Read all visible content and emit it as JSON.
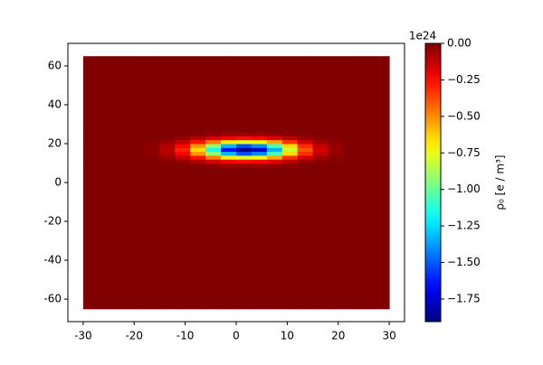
{
  "chart_data": {
    "type": "heatmap",
    "cmap": "jet",
    "x_edges": [
      -30,
      -18,
      -15,
      -12,
      -9,
      -6,
      -3,
      0,
      3,
      6,
      9,
      12,
      15,
      18,
      21,
      30
    ],
    "y_edges": [
      -65,
      8,
      10,
      12,
      14,
      16,
      18,
      20,
      22,
      24,
      26,
      65
    ],
    "values": [
      [
        0,
        0,
        0,
        0,
        0,
        0,
        0,
        0,
        0,
        0,
        0,
        0,
        0,
        0,
        0
      ],
      [
        0,
        0,
        0,
        -0.01,
        -0.02,
        -0.03,
        -0.05,
        -0.05,
        -0.05,
        -0.04,
        -0.02,
        -0.01,
        0,
        0,
        0
      ],
      [
        0,
        0,
        -0.01,
        -0.04,
        -0.09,
        -0.16,
        -0.22,
        -0.26,
        -0.24,
        -0.18,
        -0.11,
        -0.05,
        -0.02,
        -0.01,
        0
      ],
      [
        0,
        -0.01,
        -0.05,
        -0.12,
        -0.27,
        -0.47,
        -0.68,
        -0.78,
        -0.73,
        -0.55,
        -0.33,
        -0.16,
        -0.06,
        -0.02,
        0
      ],
      [
        0,
        -0.03,
        -0.09,
        -0.24,
        -0.52,
        -0.92,
        -1.32,
        -1.52,
        -1.41,
        -1.06,
        -0.65,
        -0.32,
        -0.13,
        -0.04,
        0
      ],
      [
        0,
        -0.03,
        -0.11,
        -0.3,
        -0.65,
        -1.15,
        -1.64,
        -1.89,
        -1.77,
        -1.33,
        -0.81,
        -0.4,
        -0.16,
        -0.05,
        0
      ],
      [
        0,
        -0.03,
        -0.09,
        -0.24,
        -0.52,
        -0.92,
        -1.32,
        -1.52,
        -1.41,
        -1.06,
        -0.65,
        -0.32,
        -0.13,
        -0.04,
        0
      ],
      [
        0,
        -0.01,
        -0.05,
        -0.12,
        -0.27,
        -0.47,
        -0.68,
        -0.78,
        -0.73,
        -0.55,
        -0.33,
        -0.16,
        -0.06,
        -0.02,
        0
      ],
      [
        0,
        0,
        -0.01,
        -0.04,
        -0.09,
        -0.16,
        -0.22,
        -0.26,
        -0.24,
        -0.18,
        -0.11,
        -0.05,
        -0.02,
        -0.01,
        0
      ],
      [
        0,
        0,
        0,
        -0.01,
        -0.02,
        -0.03,
        -0.05,
        -0.05,
        -0.05,
        -0.04,
        -0.02,
        -0.01,
        0,
        0,
        0
      ],
      [
        0,
        0,
        0,
        0,
        0,
        0,
        0,
        0,
        0,
        0,
        0,
        0,
        0,
        0,
        0
      ]
    ],
    "xlim": [
      -33,
      33
    ],
    "ylim": [
      -71.6,
      71.6
    ],
    "xticks": [
      -30,
      -20,
      -10,
      0,
      10,
      20,
      30
    ],
    "yticks": [
      -60,
      -40,
      -20,
      0,
      20,
      40,
      60
    ],
    "clim": [
      -1.905,
      0
    ],
    "cticks": [
      {
        "value": 0,
        "label": "0.00"
      },
      {
        "value": -0.25,
        "label": "−0.25"
      },
      {
        "value": -0.5,
        "label": "−0.50"
      },
      {
        "value": -0.75,
        "label": "−0.75"
      },
      {
        "value": -1,
        "label": "−1.00"
      },
      {
        "value": -1.25,
        "label": "−1.25"
      },
      {
        "value": -1.5,
        "label": "−1.50"
      },
      {
        "value": -1.75,
        "label": "−1.75"
      }
    ],
    "colorbar_offset": "1e24",
    "colorbar_label": "ρ₀ [e / m³]"
  }
}
